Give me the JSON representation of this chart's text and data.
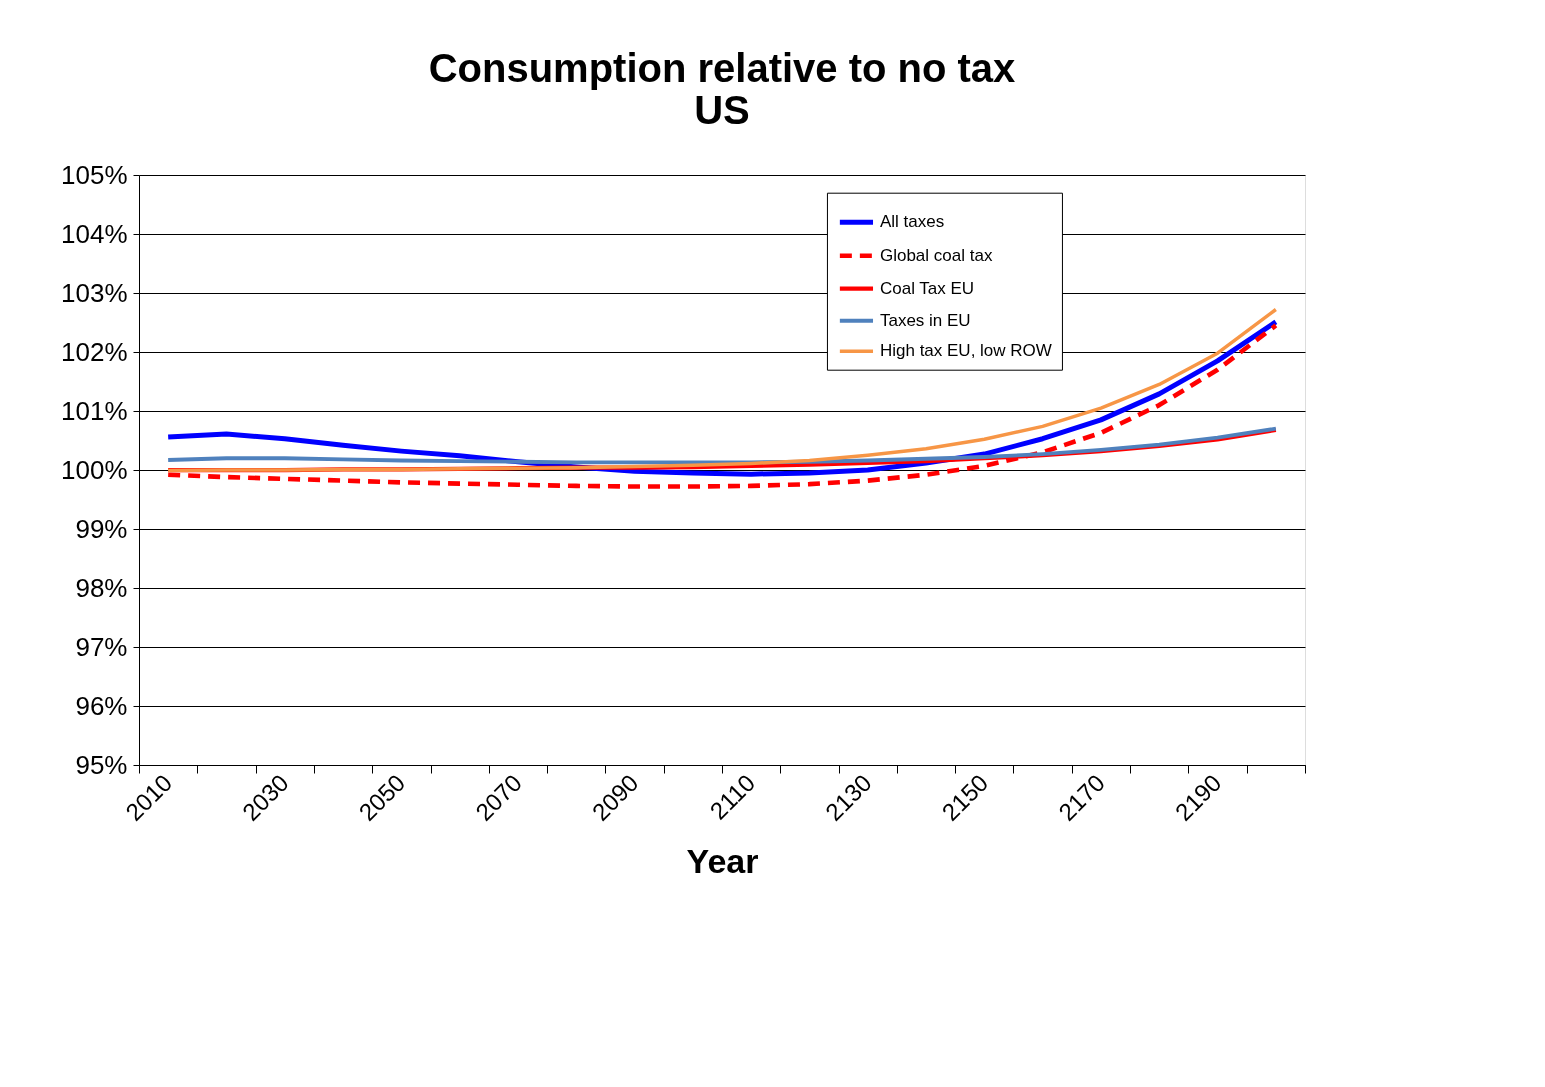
{
  "chart_data": {
    "type": "line",
    "title": "Consumption relative to no tax\nUS",
    "xlabel": "Year",
    "categories": [
      "2010",
      null,
      "2030",
      null,
      "2050",
      null,
      "2070",
      null,
      "2090",
      null,
      "2110",
      null,
      "2130",
      null,
      "2150",
      null,
      "2170",
      null,
      "2190",
      null
    ],
    "ylim": [
      95,
      105
    ],
    "yticks": [
      {
        "value": 95,
        "label": "95%"
      },
      {
        "value": 96,
        "label": "96%"
      },
      {
        "value": 97,
        "label": "97%"
      },
      {
        "value": 98,
        "label": "98%"
      },
      {
        "value": 99,
        "label": "99%"
      },
      {
        "value": 100,
        "label": "100%"
      },
      {
        "value": 101,
        "label": "101%"
      },
      {
        "value": 102,
        "label": "102%"
      },
      {
        "value": 103,
        "label": "103%"
      },
      {
        "value": 104,
        "label": "104%"
      },
      {
        "value": 105,
        "label": "105%"
      }
    ],
    "grid": "y",
    "legend": "top",
    "marker": "none",
    "series": [
      {
        "name": "All taxes",
        "color": "#0000ff",
        "line_style": "solid",
        "values": [
          100.56,
          100.61,
          100.53,
          100.42,
          100.32,
          100.24,
          100.14,
          100.05,
          99.98,
          99.95,
          99.93,
          99.95,
          100.0,
          100.12,
          100.27,
          100.53,
          100.85,
          101.29,
          101.85,
          102.51
        ]
      },
      {
        "name": "Global coal tax",
        "color": "#ff0000",
        "line_style": "dashed",
        "values": [
          99.92,
          99.88,
          99.85,
          99.82,
          99.79,
          99.77,
          99.75,
          99.73,
          99.72,
          99.72,
          99.73,
          99.76,
          99.82,
          99.92,
          100.07,
          100.3,
          100.63,
          101.1,
          101.7,
          102.45
        ]
      },
      {
        "name": "Coal Tax EU",
        "color": "#ff0000",
        "line_style": "solid",
        "values": [
          100.0,
          100.0,
          100.0,
          100.01,
          100.01,
          100.02,
          100.03,
          100.04,
          100.04,
          100.05,
          100.07,
          100.09,
          100.12,
          100.15,
          100.2,
          100.25,
          100.32,
          100.41,
          100.52,
          100.68
        ]
      },
      {
        "name": "Taxes in EU",
        "color": "#4f81bd",
        "line_style": "solid",
        "values": [
          100.17,
          100.2,
          100.2,
          100.18,
          100.16,
          100.15,
          100.14,
          100.13,
          100.13,
          100.13,
          100.13,
          100.14,
          100.16,
          100.19,
          100.22,
          100.27,
          100.34,
          100.43,
          100.55,
          100.7
        ]
      },
      {
        "name": "High tax EU, low ROW",
        "color": "#f79646",
        "line_style": "solid",
        "values": [
          99.99,
          100.0,
          100.0,
          100.01,
          100.01,
          100.02,
          100.03,
          100.04,
          100.06,
          100.08,
          100.11,
          100.16,
          100.25,
          100.36,
          100.52,
          100.74,
          101.05,
          101.45,
          101.98,
          102.72
        ]
      }
    ]
  }
}
